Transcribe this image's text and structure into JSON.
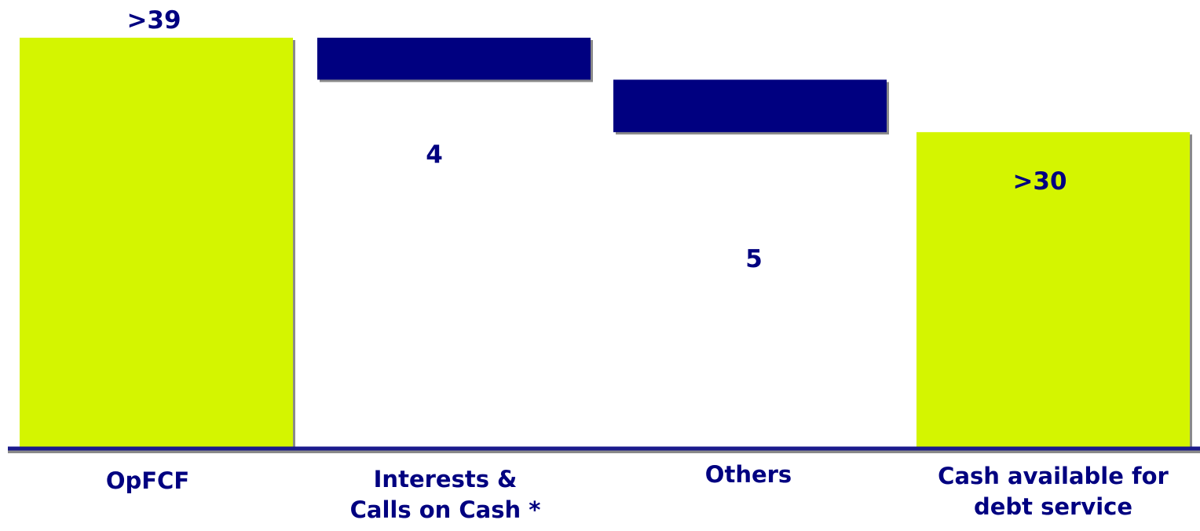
{
  "colors": {
    "total": "#d4f500",
    "delta": "#000080",
    "label": "#000080",
    "axis": "#1a1a8c",
    "shadow": "#8a8a8a"
  },
  "chart_data": {
    "type": "bar",
    "subtype": "waterfall",
    "title": "",
    "xlabel": "",
    "ylabel": "",
    "ylim": [
      0,
      39
    ],
    "grid": false,
    "legend": "none",
    "categories": [
      [
        "OpFCF"
      ],
      [
        "Interests &",
        "Calls on Cash *"
      ],
      [
        "Others"
      ],
      [
        "Cash available for",
        "debt service"
      ]
    ],
    "steps": [
      {
        "kind": "total",
        "value": 39,
        "label": ">39"
      },
      {
        "kind": "decrease",
        "value": 4,
        "label": "4"
      },
      {
        "kind": "decrease",
        "value": 5,
        "label": "5"
      },
      {
        "kind": "total",
        "value": 30,
        "label": ">30"
      }
    ]
  }
}
